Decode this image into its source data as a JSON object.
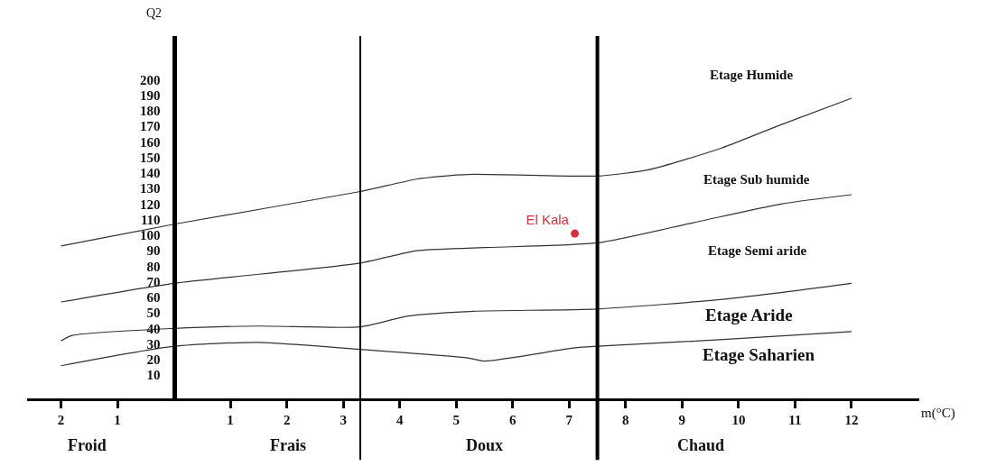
{
  "chart_data": {
    "type": "line",
    "xlabel": "m(°C)",
    "ylabel": "Q2",
    "xlim": [
      -2.6,
      13.2
    ],
    "ylim": [
      -5,
      228
    ],
    "xticks": [
      {
        "value": -2,
        "label": "2"
      },
      {
        "value": -1,
        "label": "1"
      },
      1,
      2,
      3,
      4,
      5,
      6,
      7,
      8,
      9,
      10,
      11,
      12
    ],
    "yticks": [
      10,
      20,
      30,
      40,
      50,
      60,
      70,
      80,
      90,
      100,
      110,
      120,
      130,
      140,
      150,
      160,
      170,
      180,
      190,
      200
    ],
    "legend": false,
    "marker": "none",
    "line_style": "solid",
    "series": [
      {
        "color": "#333333",
        "x": [
          -2,
          0,
          3.3,
          4.3,
          5.2,
          7.5,
          8.4,
          9.7,
          10.75,
          12
        ],
        "values": [
          93,
          107,
          128,
          136,
          139,
          138,
          142,
          156,
          171,
          188
        ]
      },
      {
        "color": "#333333",
        "x": [
          -2,
          0,
          3.3,
          4.3,
          5.5,
          7.5,
          9.2,
          10.75,
          12
        ],
        "values": [
          57,
          69,
          82,
          90,
          92,
          95,
          108,
          120,
          126
        ]
      },
      {
        "color": "#333333",
        "x": [
          -2,
          -1.8,
          0,
          1.5,
          3.3,
          4.15,
          5.3,
          7.5,
          9.8,
          12
        ],
        "values": [
          32,
          35.5,
          40,
          41.5,
          41,
          48,
          51,
          52.5,
          59,
          69
        ]
      },
      {
        "color": "#333333",
        "x": [
          -2,
          0,
          1.5,
          3.3,
          5.2,
          5.5,
          7.1,
          7.5,
          9.8,
          12
        ],
        "values": [
          16,
          28.5,
          31,
          26.5,
          21,
          19,
          27.5,
          28.5,
          33,
          38
        ]
      },
      {
        "type": "scatter",
        "name": "El Kala",
        "color": "#d0313d",
        "marker": "circle",
        "x": [
          7.1
        ],
        "values": [
          101
        ]
      }
    ],
    "ref_lines": [
      {
        "axis": "x",
        "value": 3.3,
        "color": "#000000"
      },
      {
        "axis": "x",
        "value": 7.5,
        "color": "#000000"
      }
    ],
    "annotations": [
      "Etage Humide",
      "Etage Sub humide",
      "Etage Semi aride",
      "Etage Aride",
      "Etage Saharien",
      "Froid",
      "Frais",
      "Doux",
      "Chaud"
    ]
  }
}
